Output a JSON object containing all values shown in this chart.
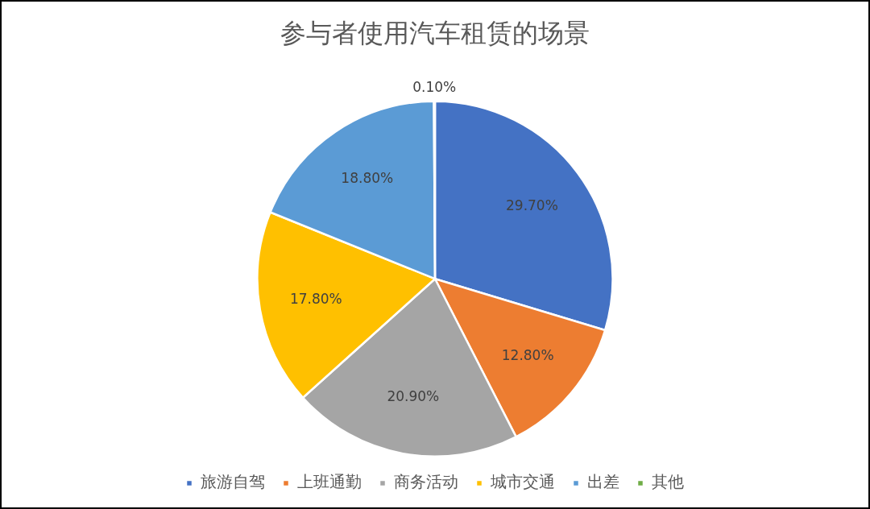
{
  "chart_data": {
    "type": "pie",
    "title": "参与者使用汽车租赁的场景",
    "categories": [
      "旅游自驾",
      "上班通勤",
      "商务活动",
      "城市交通",
      "出差",
      "其他"
    ],
    "values": [
      29.7,
      12.8,
      20.9,
      17.8,
      18.8,
      0.1
    ],
    "colors": [
      "#4472c4",
      "#ed7d31",
      "#a5a5a5",
      "#ffc000",
      "#5b9bd5",
      "#70ad47"
    ],
    "value_labels": [
      "29.70%",
      "12.80%",
      "20.90%",
      "17.80%",
      "18.80%",
      "0.10%"
    ],
    "legend": "bottom"
  }
}
